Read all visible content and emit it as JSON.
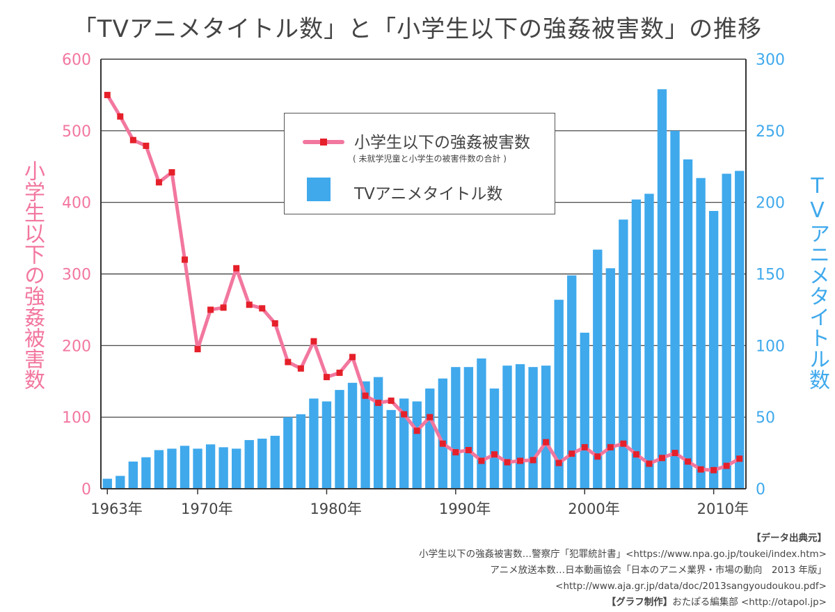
{
  "title": "「TVアニメタイトル数」と「小学生以下の強姦被害数」の推移",
  "chart_data": {
    "type": "bar+line",
    "title": "「TVアニメタイトル数」と「小学生以下の強姦被害数」の推移",
    "years": [
      1963,
      1964,
      1965,
      1966,
      1967,
      1968,
      1969,
      1970,
      1971,
      1972,
      1973,
      1974,
      1975,
      1976,
      1977,
      1978,
      1979,
      1980,
      1981,
      1982,
      1983,
      1984,
      1985,
      1986,
      1987,
      1988,
      1989,
      1990,
      1991,
      1992,
      1993,
      1994,
      1995,
      1996,
      1997,
      1998,
      1999,
      2000,
      2001,
      2002,
      2003,
      2004,
      2005,
      2006,
      2007,
      2008,
      2009,
      2010,
      2011,
      2012
    ],
    "x_tick_labels": [
      {
        "year": 1963,
        "label": "1963年"
      },
      {
        "year": 1970,
        "label": "1970年"
      },
      {
        "year": 1980,
        "label": "1980年"
      },
      {
        "year": 1990,
        "label": "1990年"
      },
      {
        "year": 2000,
        "label": "2000年"
      },
      {
        "year": 2010,
        "label": "2010年"
      }
    ],
    "xlim": [
      1962.9,
      1963.0
    ],
    "series": [
      {
        "name": "小学生以下の強姦被害数",
        "note": "( 未就学児童と小学生の被害件数の合計 )",
        "type": "line",
        "axis": "left",
        "color": "#f2779e",
        "marker_color": "#e5202a",
        "values": [
          550,
          520,
          487,
          479,
          428,
          442,
          320,
          195,
          250,
          253,
          308,
          257,
          252,
          231,
          177,
          168,
          206,
          156,
          162,
          184,
          130,
          120,
          123,
          104,
          81,
          100,
          63,
          51,
          54,
          39,
          48,
          37,
          39,
          40,
          65,
          36,
          49,
          58,
          45,
          58,
          63,
          48,
          35,
          43,
          50,
          38,
          27,
          26,
          32,
          42
        ]
      },
      {
        "name": "TVアニメタイトル数",
        "type": "bar",
        "axis": "right",
        "color": "#3fa9ec",
        "values": [
          7,
          9,
          19,
          22,
          27,
          28,
          30,
          28,
          31,
          29,
          28,
          34,
          35,
          37,
          50,
          52,
          63,
          61,
          69,
          74,
          75,
          78,
          55,
          63,
          61,
          70,
          77,
          85,
          85,
          91,
          70,
          86,
          87,
          85,
          86,
          132,
          149,
          109,
          167,
          154,
          188,
          202,
          206,
          279,
          250,
          230,
          217,
          194,
          220,
          222
        ]
      }
    ],
    "y_left": {
      "label": "小学生以下の強姦被害数",
      "ylim": [
        0,
        600
      ],
      "ticks": [
        "0",
        "100",
        "200",
        "300",
        "400",
        "500",
        "600"
      ]
    },
    "y_right": {
      "label": "TVアニメタイトル数",
      "ylim": [
        0,
        300
      ],
      "ticks": [
        "0",
        "50",
        "100",
        "150",
        "200",
        "250",
        "300"
      ]
    },
    "grid": true,
    "legend_position": "top-center"
  },
  "legend": {
    "line_label": "小学生以下の強姦被害数",
    "line_note": "( 未就学児童と小学生の被害件数の合計 )",
    "bar_label": "TVアニメタイトル数"
  },
  "sources": {
    "heading": "【データ出典元】",
    "line1": "小学生以下の強姦被害数…警察庁「犯罪統計書」<https://www.npa.go.jp/toukei/index.htm>",
    "line2": "アニメ放送本数…日本動画協会「日本のアニメ業界・市場の動向　2013 年版」",
    "line3": "<http://www.aja.gr.jp/data/doc/2013sangyoudoukou.pdf>",
    "credit_label": "【グラフ制作】",
    "credit_text": "おたぽる編集部 <http://otapol.jp>"
  },
  "colors": {
    "line": "#f2779e",
    "marker": "#e5202a",
    "bar": "#3fa9ec",
    "left_axis": "#f2779e",
    "right_axis": "#3fa9ec"
  }
}
